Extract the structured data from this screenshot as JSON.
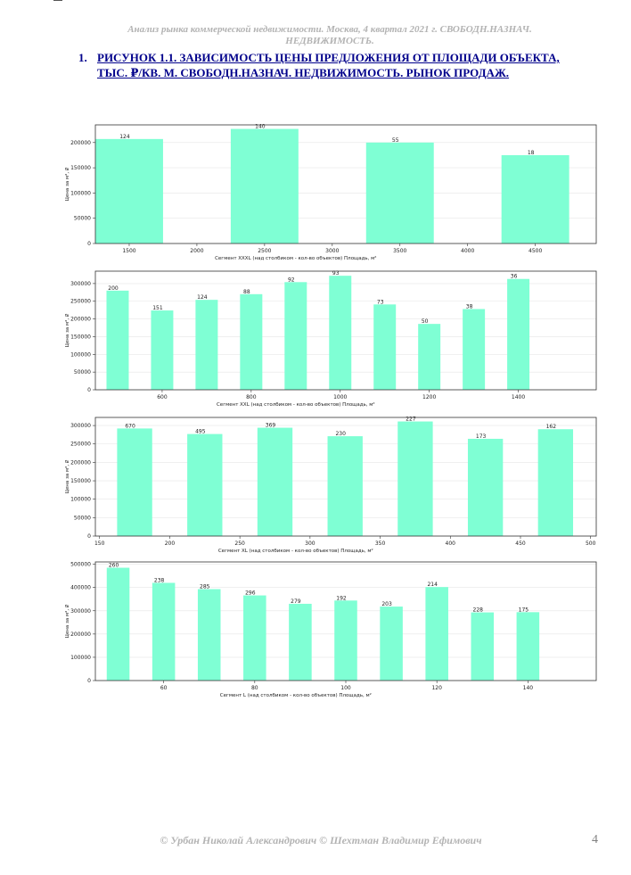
{
  "header": {
    "line1": "Анализ рынка коммерческой недвижимости.   Москва,  4 квартал 2021 г.   СВОБОДН.НАЗНАЧ.",
    "line2": "НЕДВИЖИМОСТЬ."
  },
  "figure": {
    "number": "1.",
    "title": "РИСУНОК 1.1. ЗАВИСИМОСТЬ ЦЕНЫ ПРЕДЛОЖЕНИЯ ОТ ПЛОЩАДИ ОБЪЕКТА, ТЫС. ₽/КВ. М. СВОБОДН.НАЗНАЧ. НЕДВИЖИМОСТЬ. РЫНОК ПРОДАЖ."
  },
  "colors": {
    "bar": "#7fffd4",
    "grid": "#e6e6e6",
    "axis": "#333333"
  },
  "footer": {
    "authors": "© Урбан Николай Александрович   © Шехтман Владимир Ефимович",
    "page": "4"
  },
  "chart_data": [
    {
      "type": "bar",
      "xlabel": "Сегмент XXXL (над столбиком - кол-во объектов)   Площадь, м²",
      "ylabel": "Цена за м², ₽",
      "xlim": [
        1250,
        4950
      ],
      "ylim": [
        0,
        235000
      ],
      "xticks": [
        1500,
        2000,
        2500,
        3000,
        3500,
        4000,
        4500
      ],
      "yticks": [
        0,
        50000,
        100000,
        150000,
        200000
      ],
      "bar_width": 500,
      "x": [
        1500,
        2500,
        3500,
        4500
      ],
      "values": [
        207000,
        227000,
        200000,
        175000
      ],
      "labels": [
        "124",
        "140",
        "55",
        "18"
      ]
    },
    {
      "type": "bar",
      "xlabel": "Сегмент XXL (над столбиком - кол-во объектов)   Площадь, м²",
      "ylabel": "Цена за м², ₽",
      "xlim": [
        450,
        1575
      ],
      "ylim": [
        0,
        335000
      ],
      "xticks": [
        600,
        800,
        1000,
        1200,
        1400
      ],
      "yticks": [
        0,
        50000,
        100000,
        150000,
        200000,
        250000,
        300000
      ],
      "bar_width": 50,
      "x": [
        500,
        600,
        700,
        800,
        900,
        1000,
        1100,
        1200,
        1300,
        1400
      ],
      "values": [
        280000,
        224000,
        254000,
        270000,
        304000,
        322000,
        241000,
        186000,
        228000,
        313000
      ],
      "labels": [
        "200",
        "151",
        "124",
        "88",
        "92",
        "93",
        "73",
        "50",
        "38",
        "36"
      ]
    },
    {
      "type": "bar",
      "xlabel": "Сегмент XL (над столбиком - кол-во объектов)   Площадь, м²",
      "ylabel": "Цена за м², ₽",
      "xlim": [
        147,
        504
      ],
      "ylim": [
        0,
        322000
      ],
      "xticks": [
        150,
        200,
        250,
        300,
        350,
        400,
        450,
        500
      ],
      "yticks": [
        0,
        50000,
        100000,
        150000,
        200000,
        250000,
        300000
      ],
      "bar_width": 25,
      "x": [
        175,
        225,
        275,
        325,
        375,
        425,
        475
      ],
      "values": [
        292000,
        277000,
        294000,
        271000,
        311000,
        264000,
        290000
      ],
      "labels": [
        "670",
        "495",
        "369",
        "230",
        "227",
        "173",
        "162"
      ]
    },
    {
      "type": "bar",
      "xlabel": "Сегмент L (над столбиком - кол-во объектов)   Площадь, м²",
      "ylabel": "Цена за м², ₽",
      "xlim": [
        45,
        155
      ],
      "ylim": [
        0,
        510000
      ],
      "xticks": [
        60,
        80,
        100,
        120,
        140
      ],
      "yticks": [
        0,
        100000,
        200000,
        300000,
        400000,
        500000
      ],
      "bar_width": 5,
      "x": [
        50,
        60,
        70,
        80,
        90,
        100,
        110,
        120,
        130,
        140
      ],
      "values": [
        485000,
        420000,
        393000,
        366000,
        330000,
        344000,
        318000,
        402000,
        293000,
        294000
      ],
      "labels": [
        "260",
        "238",
        "285",
        "296",
        "279",
        "192",
        "203",
        "214",
        "228",
        "175"
      ]
    }
  ]
}
